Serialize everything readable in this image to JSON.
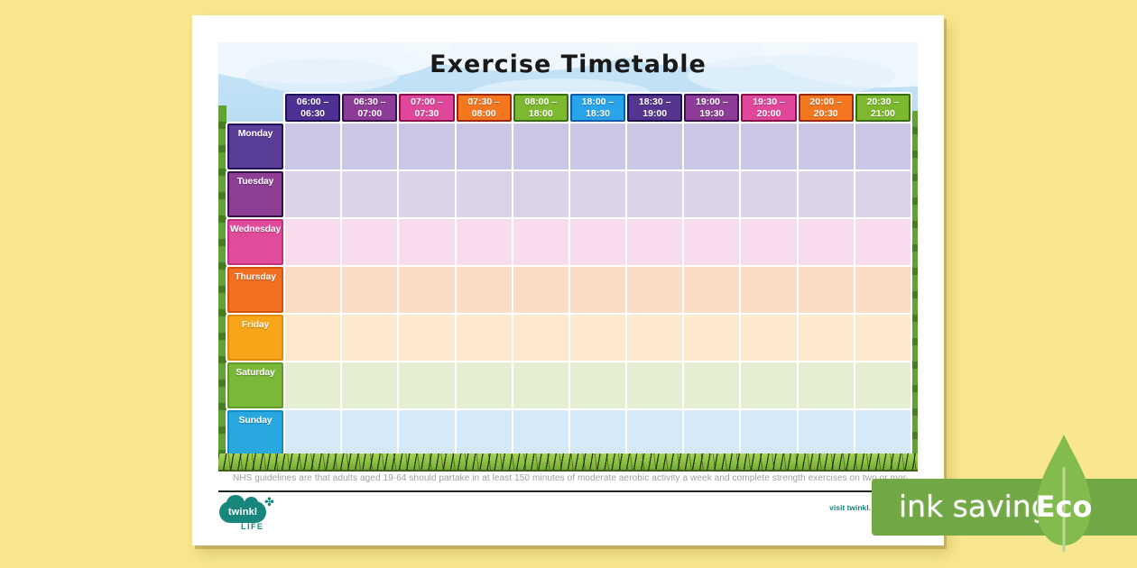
{
  "document": {
    "title": "Exercise Timetable",
    "footnote": "NHS guidelines are that adults aged 19-64 should partake in at least 150 minutes of moderate aerobic activity a week and complete strength exercises on two or more days.",
    "visit_text": "visit twinkl.",
    "logo": {
      "brand": "twinkl",
      "sub": "LIFE"
    }
  },
  "timetable": {
    "time_slots": [
      {
        "label": "06:00 – 06:30",
        "color": "#4e3195",
        "border": "#1d1257"
      },
      {
        "label": "06:30 – 07:00",
        "color": "#8c3b96",
        "border": "#3c0f52"
      },
      {
        "label": "07:00 – 07:30",
        "color": "#e0479b",
        "border": "#8c1050"
      },
      {
        "label": "07:30 – 08:00",
        "color": "#f4761f",
        "border": "#9c2a0e"
      },
      {
        "label": "08:00 – 18:00",
        "color": "#7cb92e",
        "border": "#366f12"
      },
      {
        "label": "18:00 – 18:30",
        "color": "#29a3ea",
        "border": "#0f5fa8"
      },
      {
        "label": "18:30 – 19:00",
        "color": "#55358f",
        "border": "#1d1257"
      },
      {
        "label": "19:00 – 19:30",
        "color": "#8c3b96",
        "border": "#3c0f52"
      },
      {
        "label": "19:30 – 20:00",
        "color": "#e0479b",
        "border": "#8c1050"
      },
      {
        "label": "20:00 – 20:30",
        "color": "#f4761f",
        "border": "#9c2a0e"
      },
      {
        "label": "20:30 – 21:00",
        "color": "#7cb92e",
        "border": "#366f12"
      }
    ],
    "days": [
      {
        "label": "Monday",
        "color": "#5a3d99",
        "border": "#241257",
        "cell_color": "#c9c6e6"
      },
      {
        "label": "Tuesday",
        "color": "#8c3f95",
        "border": "#341048",
        "cell_color": "#ddd3e9"
      },
      {
        "label": "Wednesday",
        "color": "#e04b9b",
        "border": "#c22f7d",
        "cell_color": "#f6dcec"
      },
      {
        "label": "Thursday",
        "color": "#f26f21",
        "border": "#d4540e",
        "cell_color": "#fadcc5"
      },
      {
        "label": "Friday",
        "color": "#f9a51a",
        "border": "#df8c07",
        "cell_color": "#fdeacd"
      },
      {
        "label": "Saturday",
        "color": "#7ab83a",
        "border": "#5f9b25",
        "cell_color": "#e4eed2"
      },
      {
        "label": "Sunday",
        "color": "#29a8e0",
        "border": "#148cc4",
        "cell_color": "#d5e9f8"
      }
    ],
    "cells_per_row": 11,
    "cell_value": ""
  },
  "badge": {
    "label": "ink saving",
    "eco_label": "Eco",
    "bar_color": "#72a746",
    "leaf_color": "#83bb4e",
    "stem_color": "#b7d791"
  },
  "colors": {
    "background": "#f8e78e",
    "sky": "#abd5f0",
    "grass": "#84bb3d",
    "brand_teal": "#17867c",
    "footnote_gray": "#9e9e9e"
  }
}
